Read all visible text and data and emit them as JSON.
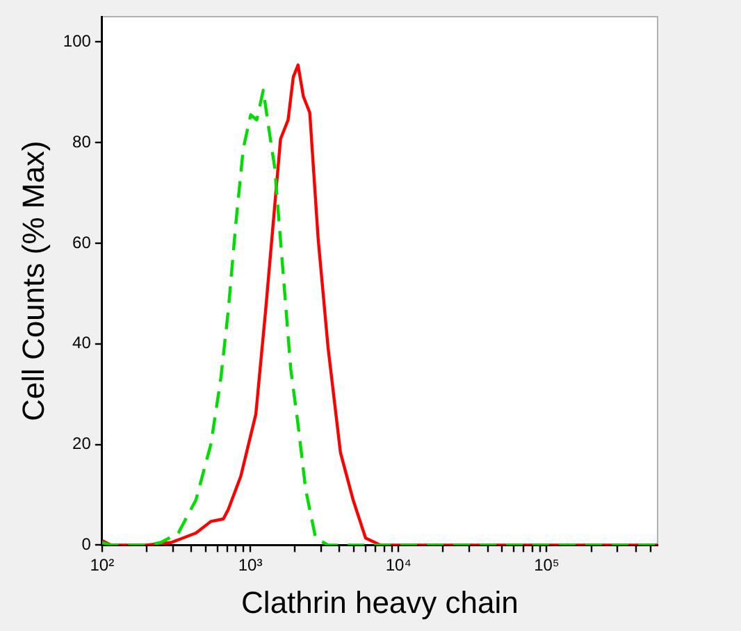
{
  "chart_data": {
    "type": "line",
    "xlabel": "Clathrin heavy chain",
    "ylabel": "Cell Counts (% Max)",
    "log": "x",
    "grid": false,
    "legend": false,
    "marker": "none",
    "xlim": [
      100,
      560000
    ],
    "ylim": [
      0,
      105
    ],
    "xticks": [
      {
        "value": 100,
        "label": "10²"
      },
      {
        "value": 200,
        "label": null
      },
      {
        "value": 300,
        "label": null
      },
      {
        "value": 400,
        "label": null
      },
      {
        "value": 500,
        "label": null
      },
      {
        "value": 600,
        "label": null
      },
      {
        "value": 700,
        "label": null
      },
      {
        "value": 800,
        "label": null
      },
      {
        "value": 900,
        "label": null
      },
      {
        "value": 1000,
        "label": "10³"
      },
      {
        "value": 2000,
        "label": null
      },
      {
        "value": 3000,
        "label": null
      },
      {
        "value": 4000,
        "label": null
      },
      {
        "value": 5000,
        "label": null
      },
      {
        "value": 6000,
        "label": null
      },
      {
        "value": 7000,
        "label": null
      },
      {
        "value": 8000,
        "label": null
      },
      {
        "value": 9000,
        "label": null
      },
      {
        "value": 10000,
        "label": "10⁴"
      },
      {
        "value": 20000,
        "label": null
      },
      {
        "value": 30000,
        "label": null
      },
      {
        "value": 40000,
        "label": null
      },
      {
        "value": 50000,
        "label": null
      },
      {
        "value": 60000,
        "label": null
      },
      {
        "value": 70000,
        "label": null
      },
      {
        "value": 80000,
        "label": null
      },
      {
        "value": 90000,
        "label": null
      },
      {
        "value": 100000,
        "label": "10⁵"
      },
      {
        "value": 200000,
        "label": null
      },
      {
        "value": 300000,
        "label": null
      },
      {
        "value": 400000,
        "label": null
      },
      {
        "value": 500000,
        "label": null
      }
    ],
    "yticks": [
      0,
      20,
      40,
      60,
      80,
      100
    ],
    "series": [
      {
        "color": "#00dd00",
        "line_style": "dashed",
        "x": [
          100,
          115,
          198,
          249,
          327,
          430,
          542,
          632,
          711,
          798,
          897,
          1007,
          1107,
          1224,
          1321,
          1462,
          1667,
          1875,
          2100,
          2366,
          2760,
          3350,
          560000
        ],
        "values": [
          0.5,
          0,
          0,
          0.5,
          2.4,
          9,
          20,
          33,
          46.7,
          63.7,
          78.8,
          85.5,
          84.5,
          90.4,
          83.6,
          75,
          54,
          35,
          24,
          11,
          1.4,
          0,
          0
        ]
      },
      {
        "color": "#ff0000",
        "line_style": "solid",
        "x": [
          100,
          115,
          198,
          292,
          430,
          542,
          658,
          711,
          863,
          1090,
          1270,
          1600,
          1800,
          1950,
          2100,
          2280,
          2520,
          2870,
          3350,
          4060,
          4940,
          6000,
          7570,
          560000
        ],
        "values": [
          0.9,
          0,
          0,
          0.5,
          2.4,
          4.7,
          5.2,
          7.1,
          13.7,
          26,
          46.7,
          80.7,
          84.5,
          93,
          95.4,
          89.2,
          85.9,
          60.9,
          39.2,
          18.4,
          9,
          1.4,
          0,
          0
        ]
      }
    ]
  }
}
